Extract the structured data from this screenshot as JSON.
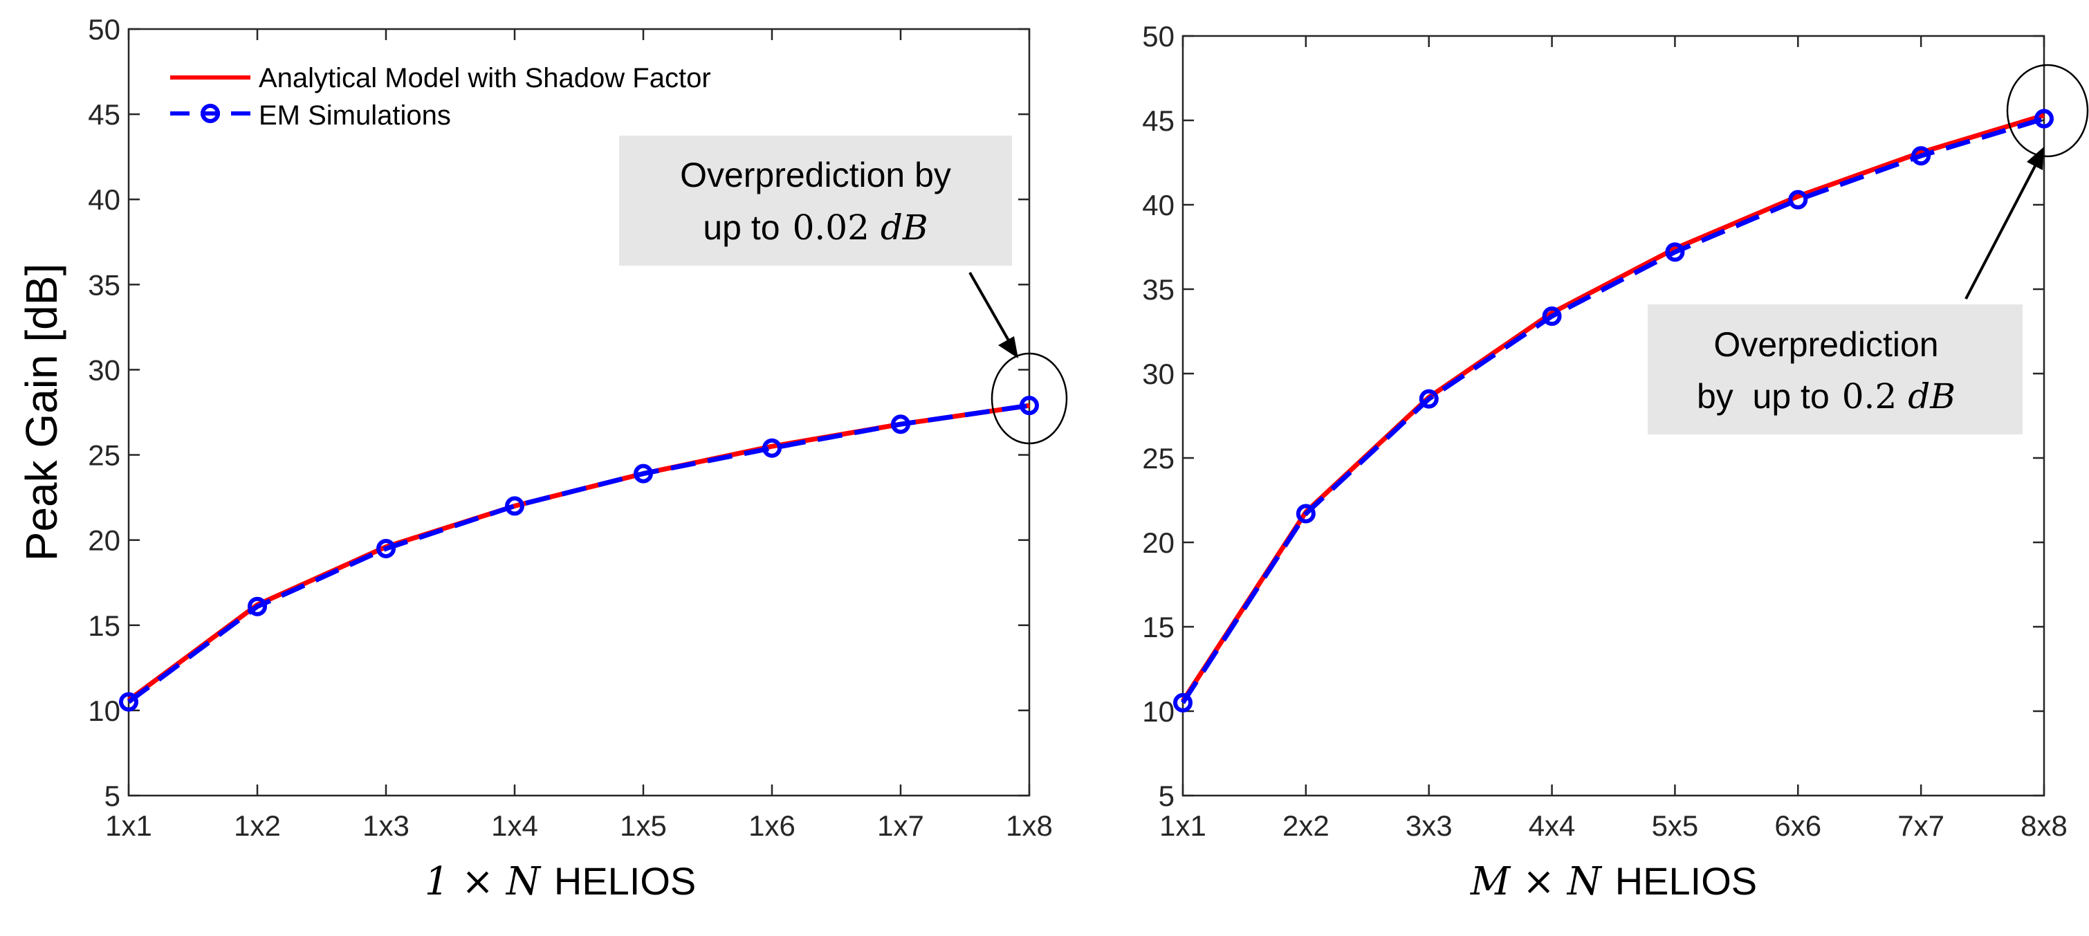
{
  "chart_data": [
    {
      "type": "line",
      "categories": [
        "1x1",
        "1x2",
        "1x3",
        "1x4",
        "1x5",
        "1x6",
        "1x7",
        "1x8"
      ],
      "ylabel": "Peak Gain [dB]",
      "xlabel": {
        "math": "1 × N",
        "text": "HELIOS"
      },
      "ylim": [
        5,
        50
      ],
      "yticks": [
        5,
        10,
        15,
        20,
        25,
        30,
        35,
        40,
        45,
        50
      ],
      "grid": false,
      "legend": {
        "location": "top-left",
        "entries": [
          "Analytical Model with Shadow Factor",
          "EM Simulations"
        ]
      },
      "series": [
        {
          "name": "Analytical Model with Shadow Factor",
          "color": "#ff0000",
          "style": "solid",
          "values": [
            10.6,
            16.2,
            19.6,
            22.0,
            23.9,
            25.5,
            26.8,
            27.9
          ]
        },
        {
          "name": "EM Simulations",
          "color": "#0000ff",
          "style": "dashed-circle",
          "values": [
            10.5,
            16.1,
            19.5,
            22.0,
            23.9,
            25.4,
            26.8,
            27.9
          ]
        }
      ],
      "annotation": {
        "line1": "Overprediction by",
        "line2_text": "up to",
        "line2_value": "0.02",
        "line2_unit": "dB",
        "target": "1x8"
      }
    },
    {
      "type": "line",
      "categories": [
        "1x1",
        "2x2",
        "3x3",
        "4x4",
        "5x5",
        "6x6",
        "7x7",
        "8x8"
      ],
      "ylabel": "",
      "xlabel": {
        "math": "M × N",
        "text": "HELIOS"
      },
      "ylim": [
        5,
        50
      ],
      "yticks": [
        5,
        10,
        15,
        20,
        25,
        30,
        35,
        40,
        45,
        50
      ],
      "grid": false,
      "series": [
        {
          "name": "Analytical Model with Shadow Factor",
          "color": "#ff0000",
          "style": "solid",
          "values": [
            10.6,
            21.8,
            28.6,
            33.6,
            37.4,
            40.5,
            43.1,
            45.3
          ]
        },
        {
          "name": "EM Simulations",
          "color": "#0000ff",
          "style": "dashed-circle",
          "values": [
            10.5,
            21.7,
            28.5,
            33.4,
            37.2,
            40.3,
            42.9,
            45.1
          ]
        }
      ],
      "annotation": {
        "line1": "Overprediction",
        "line2_text": "by  up to",
        "line2_value": "0.2",
        "line2_unit": "dB",
        "target": "8x8"
      }
    }
  ]
}
